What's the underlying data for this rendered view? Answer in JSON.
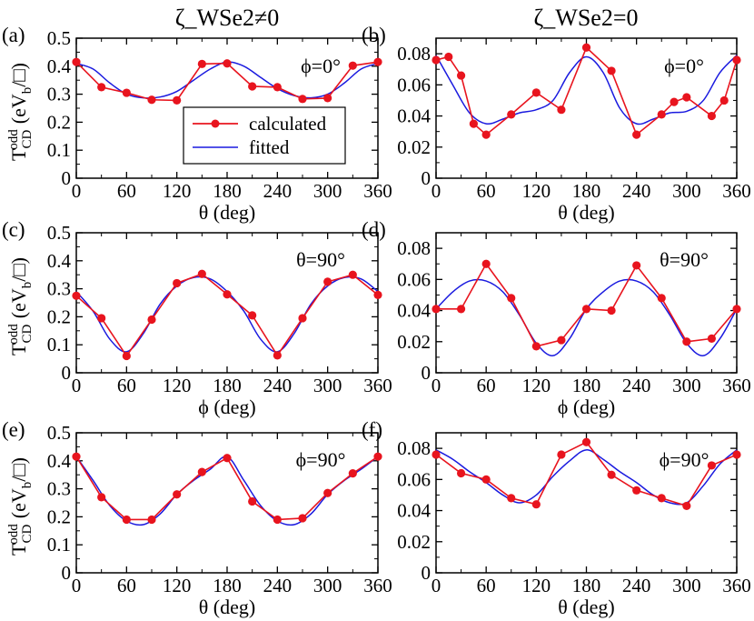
{
  "column_titles": [
    "ζ_WSe2≠0",
    "ζ_WSe2=0"
  ],
  "ylabel": {
    "main": "T",
    "sup": "odd",
    "sub": "CD",
    "units_open": "(eV",
    "units_sub": "b",
    "units_close": "/□)"
  },
  "legend": {
    "calculated": "calculated",
    "fitted": "fitted"
  },
  "colors": {
    "calculated": "#e8141e",
    "fitted": "#1a1adf",
    "axis": "#000000"
  },
  "chart_data": [
    {
      "id": "a",
      "panel_label": "(a)",
      "type": "line",
      "annotation": "ϕ=0°",
      "xlabel": "θ (deg)",
      "xlim": [
        0,
        360
      ],
      "xticks": [
        0,
        60,
        120,
        180,
        240,
        300,
        360
      ],
      "ylim": [
        0,
        0.5
      ],
      "yticks": [
        0,
        0.1,
        0.2,
        0.3,
        0.4,
        0.5
      ],
      "ytick_labels": [
        "0",
        "0.1",
        "0.2",
        "0.3",
        "0.4",
        "0.5"
      ],
      "series": [
        {
          "name": "calculated",
          "x": [
            0,
            30,
            60,
            90,
            120,
            150,
            180,
            210,
            240,
            270,
            300,
            330,
            360
          ],
          "y": [
            0.415,
            0.325,
            0.305,
            0.28,
            0.278,
            0.408,
            0.41,
            0.328,
            0.325,
            0.283,
            0.286,
            0.402,
            0.415
          ]
        },
        {
          "name": "fitted",
          "x": [
            0,
            20,
            40,
            60,
            80,
            100,
            120,
            140,
            160,
            180,
            200,
            220,
            240,
            260,
            280,
            300,
            320,
            340,
            360
          ],
          "y": [
            0.41,
            0.39,
            0.34,
            0.3,
            0.287,
            0.29,
            0.31,
            0.35,
            0.39,
            0.415,
            0.4,
            0.36,
            0.32,
            0.295,
            0.287,
            0.3,
            0.34,
            0.39,
            0.41
          ]
        }
      ]
    },
    {
      "id": "b",
      "panel_label": "(b)",
      "type": "line",
      "annotation": "ϕ=0°",
      "xlabel": "θ (deg)",
      "xlim": [
        0,
        360
      ],
      "xticks": [
        0,
        60,
        120,
        180,
        240,
        300,
        360
      ],
      "ylim": [
        0,
        0.09
      ],
      "yticks": [
        0,
        0.02,
        0.04,
        0.06,
        0.08
      ],
      "ytick_labels": [
        "0",
        "0.02",
        "0.04",
        "0.06",
        "0.08"
      ],
      "series": [
        {
          "name": "calculated",
          "x": [
            0,
            15,
            30,
            45,
            60,
            90,
            120,
            150,
            180,
            210,
            240,
            270,
            285,
            300,
            330,
            345,
            360
          ],
          "y": [
            0.076,
            0.078,
            0.066,
            0.035,
            0.028,
            0.041,
            0.055,
            0.044,
            0.084,
            0.069,
            0.028,
            0.041,
            0.049,
            0.052,
            0.04,
            0.05,
            0.076
          ]
        },
        {
          "name": "fitted",
          "x": [
            0,
            20,
            40,
            60,
            80,
            100,
            120,
            140,
            160,
            180,
            200,
            220,
            240,
            260,
            280,
            300,
            320,
            340,
            360
          ],
          "y": [
            0.079,
            0.06,
            0.042,
            0.035,
            0.038,
            0.042,
            0.044,
            0.05,
            0.068,
            0.078,
            0.068,
            0.045,
            0.035,
            0.038,
            0.042,
            0.043,
            0.05,
            0.068,
            0.079
          ]
        }
      ]
    },
    {
      "id": "c",
      "panel_label": "(c)",
      "type": "line",
      "annotation": "θ=90°",
      "xlabel": "ϕ (deg)",
      "xlim": [
        0,
        360
      ],
      "xticks": [
        0,
        60,
        120,
        180,
        240,
        300,
        360
      ],
      "ylim": [
        0,
        0.5
      ],
      "yticks": [
        0,
        0.1,
        0.2,
        0.3,
        0.4,
        0.5
      ],
      "ytick_labels": [
        "0",
        "0.1",
        "0.2",
        "0.3",
        "0.4",
        "0.5"
      ],
      "series": [
        {
          "name": "calculated",
          "x": [
            0,
            30,
            60,
            90,
            120,
            150,
            180,
            210,
            240,
            270,
            300,
            330,
            360
          ],
          "y": [
            0.275,
            0.195,
            0.06,
            0.19,
            0.32,
            0.353,
            0.28,
            0.205,
            0.062,
            0.195,
            0.325,
            0.35,
            0.278
          ]
        },
        {
          "name": "fitted",
          "x": [
            0,
            20,
            40,
            60,
            80,
            100,
            120,
            140,
            160,
            180,
            200,
            220,
            240,
            260,
            280,
            300,
            320,
            340,
            360
          ],
          "y": [
            0.29,
            0.22,
            0.12,
            0.075,
            0.14,
            0.245,
            0.31,
            0.34,
            0.335,
            0.29,
            0.22,
            0.12,
            0.075,
            0.14,
            0.245,
            0.31,
            0.34,
            0.335,
            0.29
          ]
        }
      ]
    },
    {
      "id": "d",
      "panel_label": "(d)",
      "type": "line",
      "annotation": "θ=90°",
      "xlabel": "ϕ (deg)",
      "xlim": [
        0,
        360
      ],
      "xticks": [
        0,
        60,
        120,
        180,
        240,
        300,
        360
      ],
      "ylim": [
        0,
        0.09
      ],
      "yticks": [
        0,
        0.02,
        0.04,
        0.06,
        0.08
      ],
      "ytick_labels": [
        "0",
        "0.02",
        "0.04",
        "0.06",
        "0.08"
      ],
      "series": [
        {
          "name": "calculated",
          "x": [
            0,
            30,
            60,
            90,
            120,
            150,
            180,
            210,
            240,
            270,
            300,
            330,
            360
          ],
          "y": [
            0.041,
            0.041,
            0.07,
            0.048,
            0.017,
            0.021,
            0.041,
            0.04,
            0.069,
            0.048,
            0.02,
            0.022,
            0.041
          ]
        },
        {
          "name": "fitted",
          "x": [
            0,
            20,
            40,
            60,
            80,
            100,
            120,
            140,
            160,
            180,
            200,
            220,
            240,
            260,
            280,
            300,
            320,
            340,
            360
          ],
          "y": [
            0.041,
            0.052,
            0.059,
            0.059,
            0.052,
            0.037,
            0.019,
            0.011,
            0.022,
            0.041,
            0.052,
            0.059,
            0.059,
            0.052,
            0.037,
            0.019,
            0.011,
            0.022,
            0.041
          ]
        }
      ]
    },
    {
      "id": "e",
      "panel_label": "(e)",
      "type": "line",
      "annotation": "ϕ=90°",
      "xlabel": "θ (deg)",
      "xlim": [
        0,
        360
      ],
      "xticks": [
        0,
        60,
        120,
        180,
        240,
        300,
        360
      ],
      "ylim": [
        0,
        0.5
      ],
      "yticks": [
        0,
        0.1,
        0.2,
        0.3,
        0.4,
        0.5
      ],
      "ytick_labels": [
        "0",
        "0.1",
        "0.2",
        "0.3",
        "0.4",
        "0.5"
      ],
      "series": [
        {
          "name": "calculated",
          "x": [
            0,
            30,
            60,
            90,
            120,
            150,
            180,
            210,
            240,
            270,
            300,
            330,
            360
          ],
          "y": [
            0.415,
            0.27,
            0.19,
            0.19,
            0.28,
            0.36,
            0.41,
            0.255,
            0.19,
            0.195,
            0.285,
            0.355,
            0.415
          ]
        },
        {
          "name": "fitted",
          "x": [
            0,
            20,
            40,
            60,
            80,
            100,
            120,
            140,
            160,
            180,
            200,
            220,
            240,
            260,
            280,
            300,
            320,
            340,
            360
          ],
          "y": [
            0.415,
            0.33,
            0.24,
            0.185,
            0.172,
            0.21,
            0.28,
            0.33,
            0.37,
            0.415,
            0.33,
            0.24,
            0.185,
            0.172,
            0.21,
            0.28,
            0.33,
            0.37,
            0.415
          ]
        }
      ]
    },
    {
      "id": "f",
      "panel_label": "(f)",
      "type": "line",
      "annotation": "ϕ=90°",
      "xlabel": "θ (deg)",
      "xlim": [
        0,
        360
      ],
      "xticks": [
        0,
        60,
        120,
        180,
        240,
        300,
        360
      ],
      "ylim": [
        0,
        0.09
      ],
      "yticks": [
        0,
        0.02,
        0.04,
        0.06,
        0.08
      ],
      "ytick_labels": [
        "0",
        "0.02",
        "0.04",
        "0.06",
        "0.08"
      ],
      "series": [
        {
          "name": "calculated",
          "x": [
            0,
            30,
            60,
            90,
            120,
            150,
            180,
            210,
            240,
            270,
            300,
            330,
            360
          ],
          "y": [
            0.076,
            0.064,
            0.06,
            0.048,
            0.044,
            0.076,
            0.084,
            0.063,
            0.053,
            0.048,
            0.043,
            0.069,
            0.076
          ]
        },
        {
          "name": "fitted",
          "x": [
            0,
            20,
            40,
            60,
            80,
            100,
            120,
            140,
            160,
            180,
            200,
            220,
            240,
            260,
            280,
            300,
            320,
            340,
            360
          ],
          "y": [
            0.079,
            0.073,
            0.065,
            0.058,
            0.05,
            0.045,
            0.05,
            0.062,
            0.072,
            0.079,
            0.073,
            0.065,
            0.058,
            0.05,
            0.045,
            0.045,
            0.056,
            0.07,
            0.079
          ]
        }
      ]
    }
  ]
}
